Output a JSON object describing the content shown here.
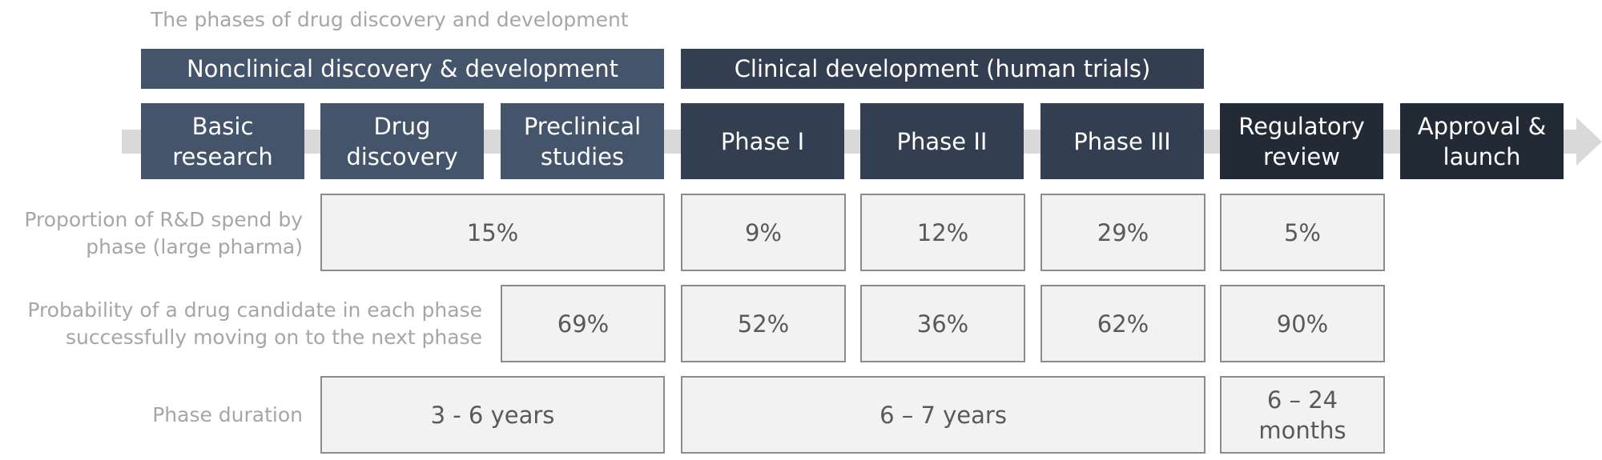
{
  "title": "The phases of drug discovery and development",
  "groups": {
    "nonclinical": "Nonclinical discovery & development",
    "clinical": "Clinical development (human trials)"
  },
  "phases": [
    "Basic\nresearch",
    "Drug\ndiscovery",
    "Preclinical\nstudies",
    "Phase I",
    "Phase II",
    "Phase III",
    "Regulatory\nreview",
    "Approval &\nlaunch"
  ],
  "rows": {
    "spend": {
      "label": "Proportion of R&D spend by\nphase (large pharma)",
      "values": [
        "15%",
        "9%",
        "12%",
        "29%",
        "5%"
      ]
    },
    "probability": {
      "label": "Probability of a drug candidate in each phase\nsuccessfully moving on to the next phase",
      "values": [
        "69%",
        "52%",
        "36%",
        "62%",
        "90%"
      ]
    },
    "duration": {
      "label": "Phase duration",
      "values": [
        "3 - 6 years",
        "6 – 7 years",
        "6 – 24\nmonths"
      ]
    }
  },
  "colors": {
    "nonclinical": "#44546a",
    "clinical": "#333f50",
    "regulatory": "#222a35",
    "cell_fill": "#f2f2f2",
    "cell_border": "#8c8c8c",
    "label_text": "#a6a6a6",
    "arrow": "#d9d9d9"
  }
}
